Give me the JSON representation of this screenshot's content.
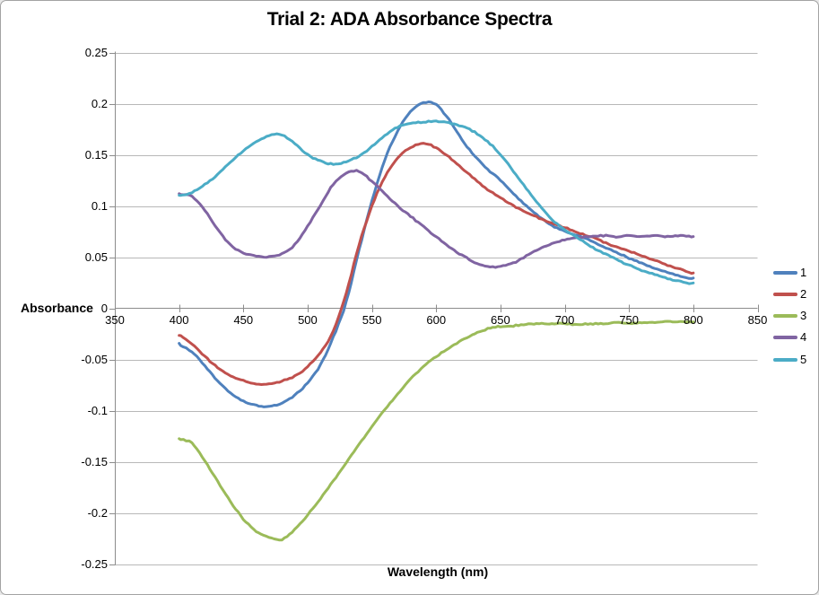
{
  "chart": {
    "title": "Trial 2: ADA Absorbance Spectra",
    "border_color": "#A3A3A3",
    "gridline_color": "#B8B8B8",
    "axis_color": "#8C8C8C",
    "y_axis": {
      "title": "Absorbance",
      "tick_labels": [
        "0.25",
        "0.2",
        "0.15",
        "0.1",
        "0.05",
        "0",
        "-0.05",
        "-0.1",
        "-0.15",
        "-0.2",
        "-0.25"
      ],
      "tick_values": [
        0.25,
        0.2,
        0.15,
        0.1,
        0.05,
        0,
        -0.05,
        -0.1,
        -0.15,
        -0.2,
        -0.25
      ]
    },
    "x_axis": {
      "title": "Wavelength (nm)",
      "tick_labels": [
        "350",
        "400",
        "450",
        "500",
        "550",
        "600",
        "650",
        "700",
        "750",
        "800",
        "850"
      ],
      "tick_values": [
        350,
        400,
        450,
        500,
        550,
        600,
        650,
        700,
        750,
        800,
        850
      ]
    },
    "legend": {
      "position": "right",
      "entries": [
        {
          "label": "1",
          "color": "#4F81BD"
        },
        {
          "label": "2",
          "color": "#C0504D"
        },
        {
          "label": "3",
          "color": "#9BBB59"
        },
        {
          "label": "4",
          "color": "#8064A2"
        },
        {
          "label": "5",
          "color": "#4BACC6"
        }
      ]
    }
  },
  "chart_data": {
    "type": "line",
    "title": "Trial 2: ADA Absorbance Spectra",
    "xlabel": "Wavelength (nm)",
    "ylabel": "Absorbance",
    "xlim": [
      350,
      850
    ],
    "ylim": [
      -0.25,
      0.25
    ],
    "grid": "horizontal",
    "legend_position": "right",
    "x": [
      400,
      410,
      420,
      430,
      440,
      450,
      460,
      470,
      480,
      490,
      500,
      510,
      520,
      530,
      540,
      550,
      560,
      570,
      580,
      590,
      600,
      610,
      620,
      630,
      640,
      650,
      660,
      670,
      680,
      690,
      700,
      710,
      720,
      730,
      740,
      750,
      760,
      770,
      780,
      790,
      800
    ],
    "series": [
      {
        "name": "1",
        "color": "#4F81BD",
        "values": [
          -0.035,
          -0.043,
          -0.056,
          -0.071,
          -0.083,
          -0.091,
          -0.095,
          -0.096,
          -0.093,
          -0.085,
          -0.073,
          -0.055,
          -0.028,
          0.006,
          0.057,
          0.105,
          0.145,
          0.173,
          0.192,
          0.201,
          0.199,
          0.184,
          0.165,
          0.149,
          0.136,
          0.125,
          0.112,
          0.1,
          0.09,
          0.081,
          0.075,
          0.071,
          0.066,
          0.06,
          0.055,
          0.049,
          0.044,
          0.039,
          0.035,
          0.031,
          0.029
        ]
      },
      {
        "name": "2",
        "color": "#C0504D",
        "values": [
          -0.026,
          -0.035,
          -0.047,
          -0.058,
          -0.066,
          -0.071,
          -0.074,
          -0.074,
          -0.071,
          -0.066,
          -0.057,
          -0.043,
          -0.022,
          0.015,
          0.062,
          0.1,
          0.128,
          0.147,
          0.157,
          0.161,
          0.157,
          0.148,
          0.137,
          0.126,
          0.116,
          0.108,
          0.1,
          0.094,
          0.088,
          0.083,
          0.079,
          0.074,
          0.07,
          0.065,
          0.06,
          0.056,
          0.051,
          0.047,
          0.042,
          0.038,
          0.034
        ]
      },
      {
        "name": "3",
        "color": "#9BBB59",
        "values": [
          -0.128,
          -0.132,
          -0.149,
          -0.169,
          -0.189,
          -0.206,
          -0.218,
          -0.224,
          -0.226,
          -0.216,
          -0.202,
          -0.186,
          -0.169,
          -0.151,
          -0.133,
          -0.116,
          -0.099,
          -0.084,
          -0.069,
          -0.057,
          -0.047,
          -0.039,
          -0.031,
          -0.025,
          -0.02,
          -0.018,
          -0.017,
          -0.016,
          -0.015,
          -0.015,
          -0.015,
          -0.016,
          -0.015,
          -0.015,
          -0.014,
          -0.015,
          -0.014,
          -0.014,
          -0.013,
          -0.013,
          -0.013
        ]
      },
      {
        "name": "4",
        "color": "#8064A2",
        "values": [
          0.112,
          0.109,
          0.096,
          0.077,
          0.062,
          0.054,
          0.051,
          0.05,
          0.053,
          0.062,
          0.08,
          0.101,
          0.121,
          0.132,
          0.134,
          0.124,
          0.112,
          0.1,
          0.09,
          0.08,
          0.07,
          0.06,
          0.052,
          0.045,
          0.041,
          0.041,
          0.044,
          0.051,
          0.058,
          0.063,
          0.067,
          0.069,
          0.07,
          0.071,
          0.07,
          0.071,
          0.07,
          0.071,
          0.07,
          0.071,
          0.07
        ]
      },
      {
        "name": "5",
        "color": "#4BACC6",
        "values": [
          0.11,
          0.113,
          0.121,
          0.131,
          0.143,
          0.154,
          0.163,
          0.169,
          0.169,
          0.161,
          0.15,
          0.144,
          0.141,
          0.143,
          0.149,
          0.158,
          0.169,
          0.177,
          0.181,
          0.182,
          0.183,
          0.181,
          0.178,
          0.172,
          0.163,
          0.15,
          0.134,
          0.117,
          0.101,
          0.087,
          0.077,
          0.069,
          0.061,
          0.054,
          0.048,
          0.042,
          0.037,
          0.033,
          0.029,
          0.026,
          0.024
        ]
      }
    ]
  }
}
